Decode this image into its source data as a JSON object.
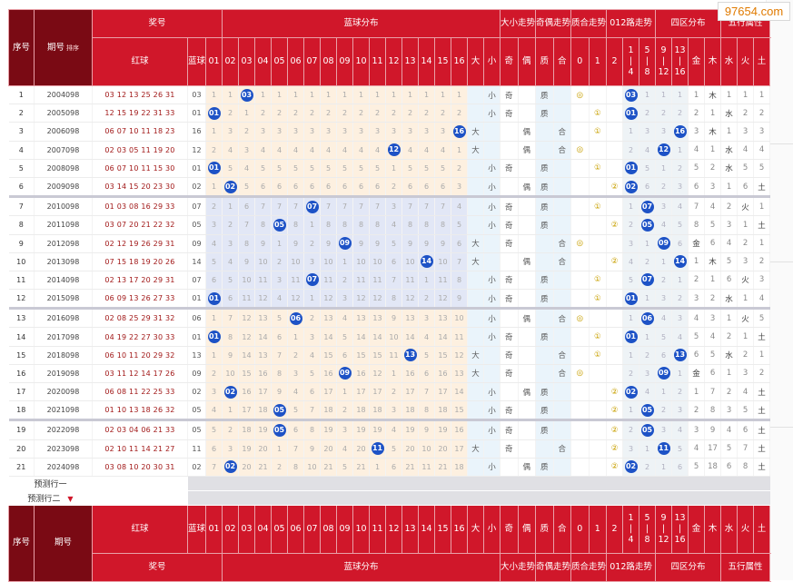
{
  "watermark": "97654.com",
  "headers": {
    "seq": "序号",
    "issue": "期号",
    "sort": "排序",
    "prize": "奖号",
    "blue_dist": "蓝球分布",
    "size": "大小走势",
    "oddeven": "奇偶走势",
    "prime": "质合走势",
    "road": "012路走势",
    "zone": "四区分布",
    "wuxing": "五行属性",
    "red": "红球",
    "blue": "蓝球"
  },
  "blue_numbers": [
    "01",
    "02",
    "03",
    "04",
    "05",
    "06",
    "07",
    "08",
    "09",
    "10",
    "11",
    "12",
    "13",
    "14",
    "15",
    "16"
  ],
  "size_cols": [
    "大",
    "小"
  ],
  "oe_cols": [
    "奇",
    "偶"
  ],
  "pc_cols": [
    "质",
    "合"
  ],
  "road_cols": [
    "0",
    "1",
    "2"
  ],
  "zone_cols": [
    [
      "1",
      "|",
      "4"
    ],
    [
      "5",
      "|",
      "8"
    ],
    [
      "9",
      "|",
      "12"
    ],
    [
      "13",
      "|",
      "16"
    ]
  ],
  "wx_cols": [
    "金",
    "木",
    "水",
    "火",
    "土"
  ],
  "predict": [
    "预测行一",
    "预测行二"
  ],
  "rows": [
    {
      "n": "1",
      "issue": "2004098",
      "red": "03 12 13 25 26 31",
      "blue": "03",
      "miss": [
        "1",
        "1",
        "3",
        "1",
        "1",
        "1",
        "1",
        "1",
        "1",
        "1",
        "1",
        "1",
        "1",
        "1",
        "1",
        "1"
      ],
      "size": "小",
      "oe": "奇",
      "pc": "质",
      "road": "◎",
      "zone": "03",
      "zm": [
        "",
        "1",
        "1",
        "1"
      ],
      "wx": "木",
      "wxm": [
        "1",
        "",
        "1",
        "1",
        "1"
      ]
    },
    {
      "n": "2",
      "issue": "2005098",
      "red": "12 15 19 22 31 33",
      "blue": "01",
      "miss": [
        "1",
        "2",
        "1",
        "2",
        "2",
        "2",
        "2",
        "2",
        "2",
        "2",
        "2",
        "2",
        "2",
        "2",
        "2",
        "2"
      ],
      "size": "小",
      "oe": "奇",
      "pc": "质",
      "road": "①",
      "zone": "01",
      "zm": [
        "",
        "2",
        "2",
        "2"
      ],
      "wx": "水",
      "wxm": [
        "2",
        "1",
        "",
        "2",
        "2"
      ]
    },
    {
      "n": "3",
      "issue": "2006098",
      "red": "06 07 10 11 18 23",
      "blue": "16",
      "miss": [
        "1",
        "3",
        "2",
        "3",
        "3",
        "3",
        "3",
        "3",
        "3",
        "3",
        "3",
        "3",
        "3",
        "3",
        "3",
        "16"
      ],
      "size": "大",
      "oe": "偶",
      "pc": "合",
      "road": "①",
      "zone": "16",
      "zm": [
        "1",
        "3",
        "3",
        ""
      ],
      "wx": "木",
      "wxm": [
        "3",
        "",
        "1",
        "3",
        "3"
      ]
    },
    {
      "n": "4",
      "issue": "2007098",
      "red": "02 03 05 11 19 20",
      "blue": "12",
      "miss": [
        "2",
        "4",
        "3",
        "4",
        "4",
        "4",
        "4",
        "4",
        "4",
        "4",
        "4",
        "12",
        "4",
        "4",
        "4",
        "1"
      ],
      "size": "大",
      "oe": "偶",
      "pc": "合",
      "road": "◎",
      "zone": "12",
      "zm": [
        "2",
        "4",
        "",
        "1"
      ],
      "wx": "水",
      "wxm": [
        "4",
        "1",
        "",
        "4",
        "4"
      ]
    },
    {
      "n": "5",
      "issue": "2008098",
      "red": "06 07 10 11 15 30",
      "blue": "01",
      "miss": [
        "1",
        "5",
        "4",
        "5",
        "5",
        "5",
        "5",
        "5",
        "5",
        "5",
        "5",
        "1",
        "5",
        "5",
        "5",
        "2"
      ],
      "size": "小",
      "oe": "奇",
      "pc": "质",
      "road": "①",
      "zone": "01",
      "zm": [
        "",
        "5",
        "1",
        "2"
      ],
      "wx": "水",
      "wxm": [
        "5",
        "2",
        "",
        "5",
        "5"
      ]
    },
    {
      "n": "6",
      "issue": "2009098",
      "red": "03 14 15 20 23 30",
      "blue": "02",
      "miss": [
        "1",
        "2",
        "5",
        "6",
        "6",
        "6",
        "6",
        "6",
        "6",
        "6",
        "6",
        "2",
        "6",
        "6",
        "6",
        "3"
      ],
      "size": "小",
      "oe": "偶",
      "pc": "质",
      "road": "②",
      "zone": "02",
      "zm": [
        "",
        "6",
        "2",
        "3"
      ],
      "wx": "土",
      "wxm": [
        "6",
        "3",
        "1",
        "6",
        ""
      ]
    },
    {
      "n": "7",
      "issue": "2010098",
      "red": "01 03 08 16 29 33",
      "blue": "07",
      "miss": [
        "2",
        "1",
        "6",
        "7",
        "7",
        "7",
        "7",
        "7",
        "7",
        "7",
        "7",
        "3",
        "7",
        "7",
        "7",
        "4"
      ],
      "size": "小",
      "oe": "奇",
      "pc": "质",
      "road": "①",
      "zone": "07",
      "zm": [
        "1",
        "",
        "3",
        "4"
      ],
      "wx": "火",
      "wxm": [
        "7",
        "4",
        "2",
        "",
        "1"
      ]
    },
    {
      "n": "8",
      "issue": "2011098",
      "red": "03 07 20 21 22 32",
      "blue": "05",
      "miss": [
        "3",
        "2",
        "7",
        "8",
        "5",
        "8",
        "1",
        "8",
        "8",
        "8",
        "8",
        "4",
        "8",
        "8",
        "8",
        "5"
      ],
      "size": "小",
      "oe": "奇",
      "pc": "质",
      "road": "②",
      "zone": "05",
      "zm": [
        "2",
        "",
        "4",
        "5"
      ],
      "wx": "土",
      "wxm": [
        "8",
        "5",
        "3",
        "1",
        ""
      ]
    },
    {
      "n": "9",
      "issue": "2012098",
      "red": "02 12 19 26 29 31",
      "blue": "09",
      "miss": [
        "4",
        "3",
        "8",
        "9",
        "1",
        "9",
        "2",
        "9",
        "9",
        "9",
        "9",
        "5",
        "9",
        "9",
        "9",
        "6"
      ],
      "size": "大",
      "oe": "奇",
      "pc": "合",
      "road": "◎",
      "zone": "09",
      "zm": [
        "3",
        "1",
        "",
        "6"
      ],
      "wx": "金",
      "wxm": [
        "",
        "6",
        "4",
        "2",
        "1"
      ]
    },
    {
      "n": "10",
      "issue": "2013098",
      "red": "07 15 18 19 20 26",
      "blue": "14",
      "miss": [
        "5",
        "4",
        "9",
        "10",
        "2",
        "10",
        "3",
        "10",
        "1",
        "10",
        "10",
        "6",
        "10",
        "14",
        "10",
        "7"
      ],
      "size": "大",
      "oe": "偶",
      "pc": "合",
      "road": "②",
      "zone": "14",
      "zm": [
        "4",
        "2",
        "1",
        ""
      ],
      "wx": "木",
      "wxm": [
        "1",
        "",
        "5",
        "3",
        "2"
      ]
    },
    {
      "n": "11",
      "issue": "2014098",
      "red": "02 13 17 20 29 31",
      "blue": "07",
      "miss": [
        "6",
        "5",
        "10",
        "11",
        "3",
        "11",
        "7",
        "11",
        "2",
        "11",
        "11",
        "7",
        "11",
        "1",
        "11",
        "8"
      ],
      "size": "小",
      "oe": "奇",
      "pc": "质",
      "road": "①",
      "zone": "07",
      "zm": [
        "5",
        "",
        "2",
        "1"
      ],
      "wx": "火",
      "wxm": [
        "2",
        "1",
        "6",
        "",
        "3"
      ]
    },
    {
      "n": "12",
      "issue": "2015098",
      "red": "06 09 13 26 27 33",
      "blue": "01",
      "miss": [
        "1",
        "6",
        "11",
        "12",
        "4",
        "12",
        "1",
        "12",
        "3",
        "12",
        "12",
        "8",
        "12",
        "2",
        "12",
        "9"
      ],
      "size": "小",
      "oe": "奇",
      "pc": "质",
      "road": "①",
      "zone": "01",
      "zm": [
        "",
        "1",
        "3",
        "2"
      ],
      "wx": "水",
      "wxm": [
        "3",
        "2",
        "",
        "1",
        "4"
      ]
    },
    {
      "n": "13",
      "issue": "2016098",
      "red": "02 08 25 29 31 32",
      "blue": "06",
      "miss": [
        "1",
        "7",
        "12",
        "13",
        "5",
        "6",
        "2",
        "13",
        "4",
        "13",
        "13",
        "9",
        "13",
        "3",
        "13",
        "10"
      ],
      "size": "小",
      "oe": "偶",
      "pc": "合",
      "road": "◎",
      "zone": "06",
      "zm": [
        "1",
        "",
        "4",
        "3"
      ],
      "wx": "火",
      "wxm": [
        "4",
        "3",
        "1",
        "",
        "5"
      ]
    },
    {
      "n": "14",
      "issue": "2017098",
      "red": "04 19 22 27 30 33",
      "blue": "01",
      "miss": [
        "1",
        "8",
        "12",
        "14",
        "6",
        "1",
        "3",
        "14",
        "5",
        "14",
        "14",
        "10",
        "14",
        "4",
        "14",
        "11"
      ],
      "size": "小",
      "oe": "奇",
      "pc": "质",
      "road": "①",
      "zone": "01",
      "zm": [
        "",
        "1",
        "5",
        "4"
      ],
      "wx": "土",
      "wxm": [
        "5",
        "4",
        "2",
        "1",
        ""
      ]
    },
    {
      "n": "15",
      "issue": "2018098",
      "red": "06 10 11 20 29 32",
      "blue": "13",
      "miss": [
        "1",
        "9",
        "14",
        "13",
        "7",
        "2",
        "4",
        "15",
        "6",
        "15",
        "15",
        "11",
        "13",
        "5",
        "15",
        "12"
      ],
      "size": "大",
      "oe": "奇",
      "pc": "合",
      "road": "①",
      "zone": "13",
      "zm": [
        "1",
        "2",
        "6",
        ""
      ],
      "wx": "水",
      "wxm": [
        "6",
        "5",
        "",
        "2",
        "1"
      ]
    },
    {
      "n": "16",
      "issue": "2019098",
      "red": "03 11 12 14 17 26",
      "blue": "09",
      "miss": [
        "2",
        "10",
        "15",
        "16",
        "8",
        "3",
        "5",
        "16",
        "9",
        "16",
        "12",
        "1",
        "16",
        "6",
        "16",
        "13"
      ],
      "size": "大",
      "oe": "奇",
      "pc": "合",
      "road": "◎",
      "zone": "09",
      "zm": [
        "2",
        "3",
        "",
        "1"
      ],
      "wx": "金",
      "wxm": [
        "",
        "6",
        "1",
        "3",
        "2"
      ]
    },
    {
      "n": "17",
      "issue": "2020098",
      "red": "06 08 11 22 25 33",
      "blue": "02",
      "miss": [
        "3",
        "2",
        "16",
        "17",
        "9",
        "4",
        "6",
        "17",
        "1",
        "17",
        "17",
        "2",
        "17",
        "7",
        "17",
        "14"
      ],
      "size": "小",
      "oe": "偶",
      "pc": "质",
      "road": "②",
      "zone": "02",
      "zm": [
        "",
        "4",
        "1",
        "2"
      ],
      "wx": "土",
      "wxm": [
        "1",
        "7",
        "2",
        "4",
        ""
      ]
    },
    {
      "n": "18",
      "issue": "2021098",
      "red": "01 10 13 18 26 32",
      "blue": "05",
      "miss": [
        "4",
        "1",
        "17",
        "18",
        "5",
        "5",
        "7",
        "18",
        "2",
        "18",
        "18",
        "3",
        "18",
        "8",
        "18",
        "15"
      ],
      "size": "小",
      "oe": "奇",
      "pc": "质",
      "road": "②",
      "zone": "05",
      "zm": [
        "1",
        "",
        "2",
        "3"
      ],
      "wx": "土",
      "wxm": [
        "2",
        "8",
        "3",
        "5",
        ""
      ]
    },
    {
      "n": "19",
      "issue": "2022098",
      "red": "02 03 04 06 21 33",
      "blue": "05",
      "miss": [
        "5",
        "2",
        "18",
        "19",
        "5",
        "6",
        "8",
        "19",
        "3",
        "19",
        "19",
        "4",
        "19",
        "9",
        "19",
        "16"
      ],
      "size": "小",
      "oe": "奇",
      "pc": "质",
      "road": "②",
      "zone": "05",
      "zm": [
        "2",
        "",
        "3",
        "4"
      ],
      "wx": "土",
      "wxm": [
        "3",
        "9",
        "4",
        "6",
        ""
      ]
    },
    {
      "n": "20",
      "issue": "2023098",
      "red": "02 10 11 14 21 27",
      "blue": "11",
      "miss": [
        "6",
        "3",
        "19",
        "20",
        "1",
        "7",
        "9",
        "20",
        "4",
        "20",
        "11",
        "5",
        "20",
        "10",
        "20",
        "17"
      ],
      "size": "大",
      "oe": "奇",
      "pc": "合",
      "road": "②",
      "zone": "11",
      "zm": [
        "3",
        "1",
        "",
        "5"
      ],
      "wx": "土",
      "wxm": [
        "4",
        "17",
        "5",
        "7",
        ""
      ]
    },
    {
      "n": "21",
      "issue": "2024098",
      "red": "03 08 10 20 30 31",
      "blue": "02",
      "miss": [
        "7",
        "2",
        "20",
        "21",
        "2",
        "8",
        "10",
        "21",
        "5",
        "21",
        "1",
        "6",
        "21",
        "11",
        "21",
        "18"
      ],
      "size": "小",
      "oe": "偶",
      "pc": "质",
      "road": "②",
      "zone": "02",
      "zm": [
        "",
        "2",
        "1",
        "6"
      ],
      "wx": "土",
      "wxm": [
        "5",
        "18",
        "6",
        "8",
        ""
      ]
    }
  ]
}
